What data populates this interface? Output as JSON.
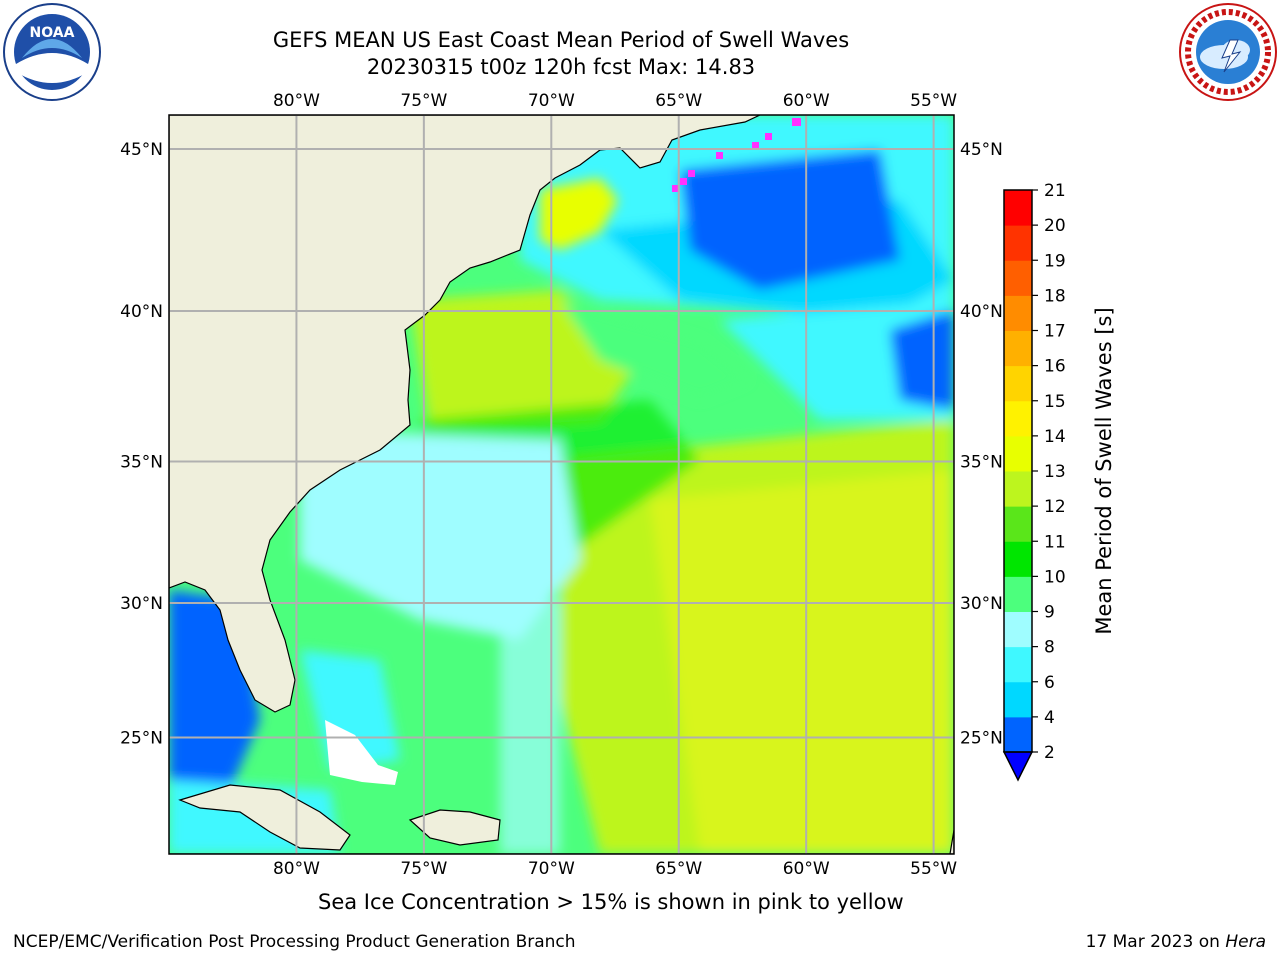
{
  "title_line1": "GEFS MEAN US East Coast Mean Period of Swell Waves",
  "title_line2": "20230315 t00z 120h fcst   Max: 14.83",
  "lon_labels": [
    "80°W",
    "75°W",
    "70°W",
    "65°W",
    "60°W",
    "55°W"
  ],
  "lat_labels": [
    "45°N",
    "40°N",
    "35°N",
    "30°N",
    "25°N"
  ],
  "map_extent": {
    "lon_min": -85,
    "lon_max": -54.2,
    "lat_min": 20.5,
    "lat_max": 46
  },
  "colorbar": {
    "label": "Mean Period of Swell Waves [s]",
    "ticks": [
      "2",
      "4",
      "6",
      "8",
      "9",
      "10",
      "11",
      "12",
      "13",
      "14",
      "15",
      "16",
      "17",
      "18",
      "19",
      "20",
      "21"
    ],
    "colors": [
      "#0064ff",
      "#00d8ff",
      "#3ff8ff",
      "#9ffdff",
      "#4cff7d",
      "#00e600",
      "#5ae61a",
      "#bdf51e",
      "#e8ff00",
      "#fff200",
      "#ffd400",
      "#ffb000",
      "#ff8c00",
      "#ff5f00",
      "#ff3300",
      "#ff0000"
    ],
    "extend_low_color": "#0000ff"
  },
  "footnote": "Sea Ice Concentration > 15% is shown in pink to yellow",
  "credit": "NCEP/EMC/Verification Post Processing Product Generation Branch",
  "date_text": "17 Mar 2023 on ",
  "date_host": "Hera",
  "logos": {
    "left": "noaa-logo",
    "right": "nws-logo",
    "noaa_text": "NOAA"
  }
}
